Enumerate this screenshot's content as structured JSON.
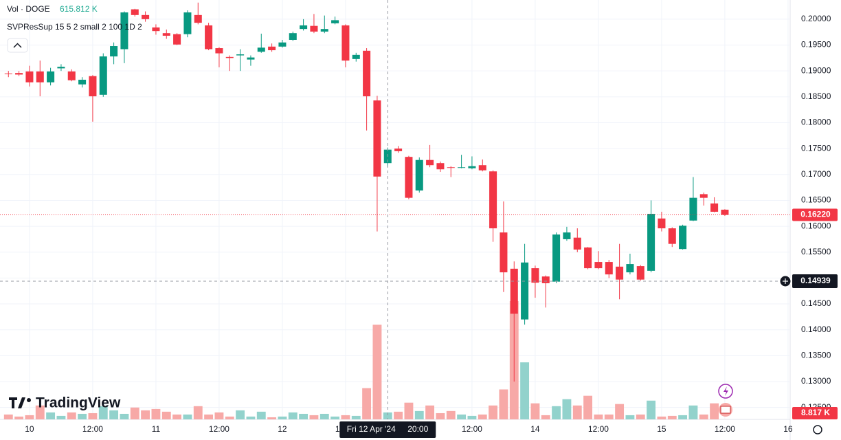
{
  "chart_data": {
    "type": "candlestick",
    "legend": {
      "vol_title": "Vol · DOGE",
      "vol_value": {
        "value": 615.812,
        "label": "615.812 K"
      },
      "indicator": "SVPResSup 15 5 2 small 2 100 1D 2"
    },
    "brand": "TradingView",
    "x": [
      -4,
      -2,
      0,
      2,
      4,
      6,
      8,
      10,
      12,
      14,
      16,
      18,
      20,
      22,
      24,
      26,
      28,
      30,
      32,
      34,
      36,
      38,
      40,
      42,
      44,
      46,
      48,
      50,
      52,
      54,
      56,
      58,
      60,
      62,
      64,
      66,
      68,
      70,
      72,
      74,
      76,
      78,
      80,
      82,
      84,
      86,
      88,
      90,
      92,
      94,
      96,
      98,
      100,
      102,
      104,
      106,
      108,
      110,
      112,
      114,
      116,
      118,
      120,
      122,
      124,
      126,
      128,
      130,
      132
    ],
    "open": [
      0.1895,
      0.1896,
      0.1899,
      0.1899,
      0.1878,
      0.1905,
      0.1899,
      0.1874,
      0.189,
      0.1854,
      0.1928,
      0.1942,
      0.2019,
      0.2008,
      0.1984,
      0.1973,
      0.1971,
      0.1971,
      0.2008,
      0.1988,
      0.1944,
      0.1927,
      0.193,
      0.1922,
      0.1937,
      0.1947,
      0.1947,
      0.196,
      0.1981,
      0.1987,
      0.1976,
      0.1992,
      0.1988,
      0.1923,
      0.1939,
      0.1843,
      0.1722,
      0.175,
      0.1734,
      0.1669,
      0.1728,
      0.1722,
      0.1714,
      0.1713,
      0.1712,
      0.1718,
      0.1706,
      0.1588,
      0.1518,
      0.142,
      0.1519,
      0.1503,
      0.1493,
      0.1575,
      0.1578,
      0.1559,
      0.1531,
      0.1531,
      0.1522,
      0.1511,
      0.1523,
      0.1514,
      0.1615,
      0.1596,
      0.1556,
      0.1611,
      0.1662,
      0.1644,
      0.1632
    ],
    "high": [
      0.19,
      0.19,
      0.191,
      0.192,
      0.1906,
      0.1913,
      0.1903,
      0.1888,
      0.1892,
      0.1934,
      0.1955,
      0.2015,
      0.202,
      0.2015,
      0.199,
      0.198,
      0.1973,
      0.2017,
      0.2032,
      0.1993,
      0.1946,
      0.193,
      0.1942,
      0.193,
      0.1972,
      0.1953,
      0.196,
      0.1976,
      0.2,
      0.201,
      0.2007,
      0.2005,
      0.199,
      0.1935,
      0.1944,
      0.1852,
      0.1752,
      0.1755,
      0.1736,
      0.1733,
      0.1757,
      0.1725,
      0.1716,
      0.1738,
      0.1735,
      0.1729,
      0.1708,
      0.1648,
      0.1532,
      0.1566,
      0.1524,
      0.1505,
      0.1588,
      0.1599,
      0.1596,
      0.156,
      0.1552,
      0.1535,
      0.1566,
      0.1547,
      0.1525,
      0.165,
      0.1628,
      0.1598,
      0.1603,
      0.1695,
      0.1665,
      0.1656,
      0.1633
    ],
    "low": [
      0.1888,
      0.189,
      0.187,
      0.1851,
      0.1872,
      0.19,
      0.188,
      0.1868,
      0.1802,
      0.185,
      0.1913,
      0.1915,
      0.2005,
      0.1995,
      0.197,
      0.1962,
      0.195,
      0.1965,
      0.199,
      0.194,
      0.1907,
      0.19,
      0.19,
      0.191,
      0.1935,
      0.1937,
      0.1945,
      0.1958,
      0.1978,
      0.1973,
      0.1973,
      0.199,
      0.1907,
      0.1918,
      0.1785,
      0.159,
      0.1715,
      0.1742,
      0.1652,
      0.1665,
      0.1714,
      0.1705,
      0.1695,
      0.1712,
      0.171,
      0.1706,
      0.157,
      0.1473,
      0.13,
      0.141,
      0.1462,
      0.1443,
      0.149,
      0.1572,
      0.155,
      0.1517,
      0.1517,
      0.15,
      0.1459,
      0.1507,
      0.1495,
      0.1511,
      0.159,
      0.156,
      0.1555,
      0.161,
      0.164,
      0.1627,
      0.162
    ],
    "close": [
      0.1894,
      0.1893,
      0.1878,
      0.1878,
      0.1899,
      0.1908,
      0.1882,
      0.1883,
      0.1851,
      0.1928,
      0.1948,
      0.2013,
      0.2008,
      0.2,
      0.1977,
      0.1968,
      0.1951,
      0.2013,
      0.1993,
      0.1942,
      0.1934,
      0.1925,
      0.1932,
      0.1926,
      0.1945,
      0.194,
      0.1955,
      0.1973,
      0.1988,
      0.1976,
      0.1981,
      0.1998,
      0.192,
      0.1931,
      0.1851,
      0.1696,
      0.1748,
      0.1745,
      0.1655,
      0.1728,
      0.1718,
      0.171,
      0.1713,
      0.1714,
      0.1716,
      0.1708,
      0.1596,
      0.1511,
      0.1431,
      0.153,
      0.1491,
      0.149,
      0.1584,
      0.1588,
      0.1555,
      0.1519,
      0.1519,
      0.1507,
      0.1497,
      0.1527,
      0.1497,
      0.1624,
      0.1596,
      0.1566,
      0.1601,
      0.1655,
      0.1655,
      0.1628,
      0.1622
    ],
    "volume": [
      430,
      250,
      370,
      1230,
      616,
      310,
      616,
      490,
      550,
      1170,
      800,
      490,
      1050,
      800,
      920,
      680,
      430,
      430,
      1170,
      430,
      616,
      250,
      800,
      250,
      680,
      185,
      250,
      616,
      490,
      370,
      490,
      250,
      370,
      310,
      2770,
      8380,
      615.812,
      680,
      1480,
      740,
      1230,
      550,
      740,
      430,
      310,
      430,
      1230,
      2650,
      10470,
      5050,
      1420,
      370,
      1170,
      1790,
      1230,
      2090,
      430,
      430,
      1360,
      370,
      430,
      1660,
      250,
      310,
      370,
      1230,
      430,
      1420,
      8.817
    ],
    "up_color": "#089981",
    "down_color": "#f23645",
    "volume_up_color": "#92d2cc",
    "volume_down_color": "#f7a9a7",
    "xlim": [
      -5.6,
      144.4
    ],
    "ylim": [
      0.1227,
      0.2037
    ],
    "xticks": [
      {
        "value": 0,
        "label": "10"
      },
      {
        "value": 12,
        "label": "12:00"
      },
      {
        "value": 24,
        "label": "11"
      },
      {
        "value": 36,
        "label": "12:00"
      },
      {
        "value": 48,
        "label": "12"
      },
      {
        "value": 60,
        "label": "12:00"
      },
      {
        "value": 84,
        "label": "12:00"
      },
      {
        "value": 96,
        "label": "14"
      },
      {
        "value": 108,
        "label": "12:00"
      },
      {
        "value": 120,
        "label": "15"
      },
      {
        "value": 132,
        "label": "12:00"
      },
      {
        "value": 144,
        "label": "16"
      }
    ],
    "yticks": [
      {
        "value": 0.125,
        "label": "0.12500"
      },
      {
        "value": 0.13,
        "label": "0.13000"
      },
      {
        "value": 0.135,
        "label": "0.13500"
      },
      {
        "value": 0.14,
        "label": "0.14000"
      },
      {
        "value": 0.145,
        "label": "0.14500"
      },
      {
        "value": 0.15,
        "label": "0.15000"
      },
      {
        "value": 0.155,
        "label": "0.15500"
      },
      {
        "value": 0.16,
        "label": "0.16000"
      },
      {
        "value": 0.165,
        "label": "0.16500"
      },
      {
        "value": 0.17,
        "label": "0.17000"
      },
      {
        "value": 0.175,
        "label": "0.17500"
      },
      {
        "value": 0.18,
        "label": "0.18000"
      },
      {
        "value": 0.185,
        "label": "0.18500"
      },
      {
        "value": 0.19,
        "label": "0.19000"
      },
      {
        "value": 0.195,
        "label": "0.19500"
      },
      {
        "value": 0.2,
        "label": "0.20000"
      }
    ],
    "grid": true,
    "last_price": {
      "value": 0.1622,
      "label": "0.16220"
    },
    "last_volume": {
      "value": 8.817,
      "label": "8.817 K"
    },
    "crosshair": {
      "x": 68,
      "price": 0.14939,
      "date_label": "Fri 12 Apr '24",
      "time_label": "20:00"
    }
  }
}
